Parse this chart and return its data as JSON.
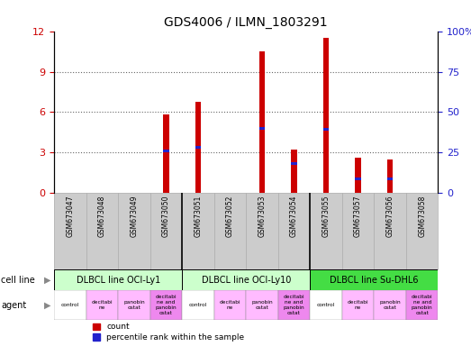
{
  "title": "GDS4006 / ILMN_1803291",
  "samples": [
    "GSM673047",
    "GSM673048",
    "GSM673049",
    "GSM673050",
    "GSM673051",
    "GSM673052",
    "GSM673053",
    "GSM673054",
    "GSM673055",
    "GSM673057",
    "GSM673056",
    "GSM673058"
  ],
  "counts": [
    0,
    0,
    0,
    5.85,
    6.8,
    0,
    10.5,
    3.2,
    11.5,
    2.6,
    2.5,
    0
  ],
  "percentile_ranks": [
    null,
    null,
    null,
    26.0,
    28.5,
    null,
    40.0,
    18.5,
    39.5,
    9.0,
    9.0,
    null
  ],
  "ylim_left": [
    0,
    12
  ],
  "ylim_right": [
    0,
    100
  ],
  "yticks_left": [
    0,
    3,
    6,
    9,
    12
  ],
  "ytick_labels_left": [
    "0",
    "3",
    "6",
    "9",
    "12"
  ],
  "yticks_right": [
    0,
    25,
    50,
    75,
    100
  ],
  "ytick_labels_right": [
    "0",
    "25",
    "50",
    "75",
    "100%"
  ],
  "cell_lines": [
    {
      "label": "DLBCL line OCI-Ly1",
      "start": 0,
      "end": 4,
      "color": "#ccffcc"
    },
    {
      "label": "DLBCL line OCI-Ly10",
      "start": 4,
      "end": 8,
      "color": "#ccffcc"
    },
    {
      "label": "DLBCL line Su-DHL6",
      "start": 8,
      "end": 12,
      "color": "#44dd44"
    }
  ],
  "agents": [
    {
      "label": "control",
      "color": "#ffffff"
    },
    {
      "label": "decitabi\nne",
      "color": "#ffbbff"
    },
    {
      "label": "panobin\nostat",
      "color": "#ffbbff"
    },
    {
      "label": "decitabi\nne and\npanobin\nostat",
      "color": "#ee88ee"
    },
    {
      "label": "control",
      "color": "#ffffff"
    },
    {
      "label": "decitabi\nne",
      "color": "#ffbbff"
    },
    {
      "label": "panobin\nostat",
      "color": "#ffbbff"
    },
    {
      "label": "decitabi\nne and\npanobin\nostat",
      "color": "#ee88ee"
    },
    {
      "label": "control",
      "color": "#ffffff"
    },
    {
      "label": "decitabi\nne",
      "color": "#ffbbff"
    },
    {
      "label": "panobin\nostat",
      "color": "#ffbbff"
    },
    {
      "label": "decitabi\nne and\npanobin\nostat",
      "color": "#ee88ee"
    }
  ],
  "bar_color": "#cc0000",
  "percentile_color": "#2222cc",
  "tick_color_left": "#cc0000",
  "tick_color_right": "#2222cc",
  "grid_color": "#666666",
  "bg_color": "#ffffff",
  "sample_bg_color": "#cccccc",
  "figsize": [
    5.23,
    3.84
  ],
  "dpi": 100
}
